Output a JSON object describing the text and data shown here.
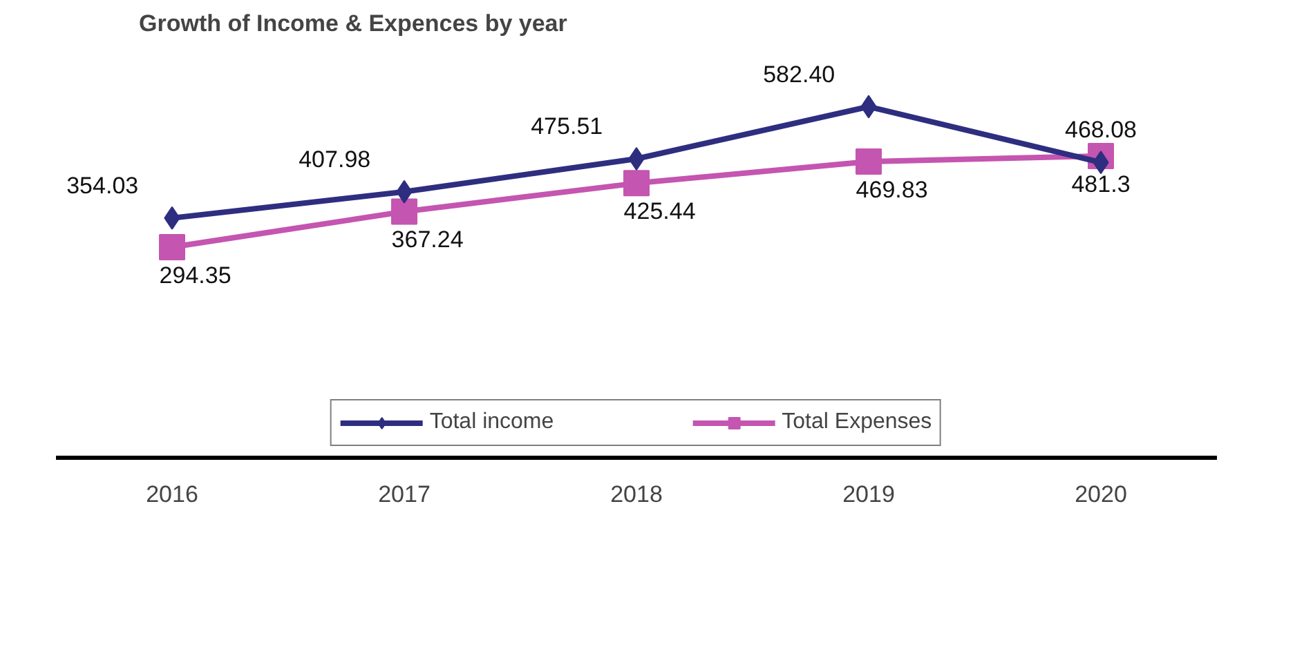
{
  "chart_data": {
    "type": "line",
    "title": "Growth of Income & Expences by year",
    "categories": [
      "2016",
      "2017",
      "2018",
      "2019",
      "2020"
    ],
    "series": [
      {
        "name": "Total income",
        "color": "#2e2e80",
        "marker": "diamond",
        "values": [
          354.03,
          407.98,
          475.51,
          582.4,
          468.08
        ],
        "value_labels": [
          "354.03",
          "407.98",
          "475.51",
          "582.40",
          "468.08"
        ]
      },
      {
        "name": "Total Expenses",
        "color": "#c455b0",
        "marker": "square",
        "values": [
          294.35,
          367.24,
          425.44,
          469.83,
          481.3
        ],
        "value_labels": [
          "294.35",
          "367.24",
          "425.44",
          "469.83",
          "481.3"
        ]
      }
    ],
    "legend": "bottom",
    "grid": false
  }
}
